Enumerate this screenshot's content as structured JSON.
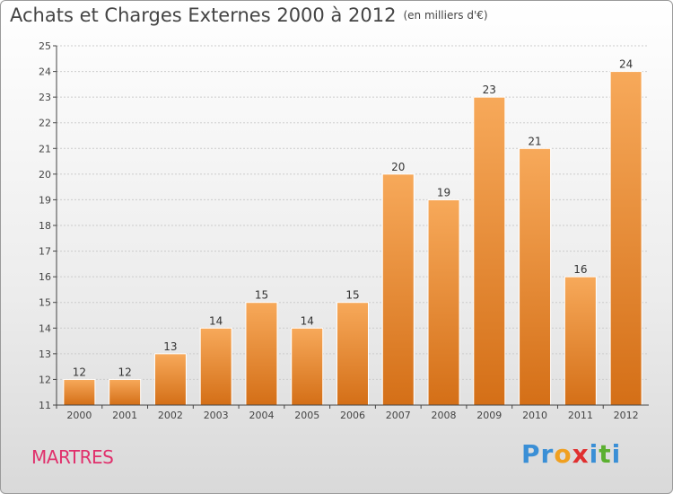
{
  "header": {
    "title": "Achats et Charges Externes 2000 à 2012",
    "unit": "(en milliers d'€)"
  },
  "commune": "MARTRES",
  "logo": {
    "text": "Proxiti",
    "letters": [
      {
        "char": "P",
        "color": "#3a8fd6"
      },
      {
        "char": "r",
        "color": "#3a8fd6"
      },
      {
        "char": "o",
        "color": "#f0a020"
      },
      {
        "char": "x",
        "color": "#e03030"
      },
      {
        "char": "i",
        "color": "#3a8fd6"
      },
      {
        "char": "t",
        "color": "#5bb030"
      },
      {
        "char": "i",
        "color": "#3a8fd6"
      }
    ]
  },
  "colors": {
    "bar_light": "#f7a95a",
    "bar_dark": "#d46f17",
    "grid": "#cccccc",
    "axis": "#444444"
  },
  "chart_data": {
    "type": "bar",
    "categories": [
      "2000",
      "2001",
      "2002",
      "2003",
      "2004",
      "2005",
      "2006",
      "2007",
      "2008",
      "2009",
      "2010",
      "2011",
      "2012"
    ],
    "values": [
      12,
      12,
      13,
      14,
      15,
      14,
      15,
      20,
      19,
      23,
      21,
      16,
      24
    ],
    "ylim": [
      11,
      25
    ],
    "yticks": [
      11,
      12,
      13,
      14,
      15,
      16,
      17,
      18,
      19,
      20,
      21,
      22,
      23,
      24,
      25
    ],
    "grid": true,
    "data_labels": true
  }
}
